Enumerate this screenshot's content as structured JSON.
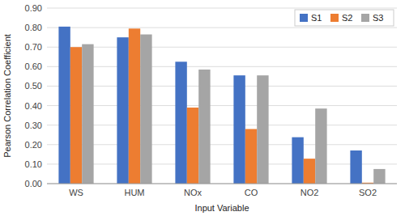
{
  "chart_data": {
    "type": "bar",
    "categories": [
      "WS",
      "HUM",
      "NOx",
      "CO",
      "NO2",
      "SO2"
    ],
    "series": [
      {
        "name": "S1",
        "color": "#4472C4",
        "values": [
          0.805,
          0.75,
          0.625,
          0.555,
          0.238,
          0.17
        ]
      },
      {
        "name": "S2",
        "color": "#ED7D31",
        "values": [
          0.7,
          0.795,
          0.39,
          0.28,
          0.128,
          0.005
        ]
      },
      {
        "name": "S3",
        "color": "#A5A5A5",
        "values": [
          0.715,
          0.765,
          0.585,
          0.555,
          0.385,
          0.075
        ]
      }
    ],
    "xlabel": "Input Variable",
    "ylabel": "Pearson Correlation Coefficient",
    "ylim": [
      0.0,
      0.9
    ],
    "yticks": [
      {
        "value": 0.0,
        "label": "0.00"
      },
      {
        "value": 0.1,
        "label": "0.10"
      },
      {
        "value": 0.2,
        "label": "0.20"
      },
      {
        "value": 0.3,
        "label": "0.30"
      },
      {
        "value": 0.4,
        "label": "0.40"
      },
      {
        "value": 0.5,
        "label": "0.50"
      },
      {
        "value": 0.6,
        "label": "0.60"
      },
      {
        "value": 0.7,
        "label": "0.70"
      },
      {
        "value": 0.8,
        "label": "0.80"
      },
      {
        "value": 0.9,
        "label": "0.90"
      }
    ],
    "grid": true,
    "legend": "upper right"
  }
}
